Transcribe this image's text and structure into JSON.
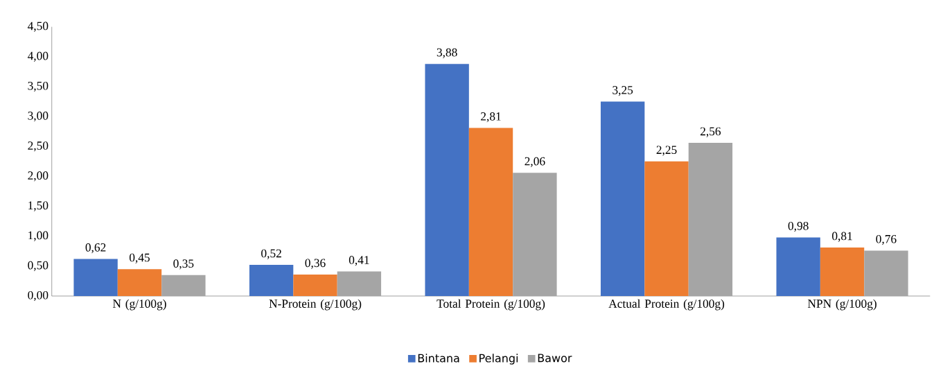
{
  "chart_data": {
    "type": "bar",
    "categories": [
      "N (g/100g)",
      "N-Protein (g/100g)",
      "Total Protein (g/100g)",
      "Actual Protein (g/100g)",
      "NPN (g/100g)"
    ],
    "series": [
      {
        "name": "Bintana",
        "color": "#4472c4",
        "values": [
          0.62,
          0.52,
          3.88,
          3.25,
          0.98
        ],
        "value_labels": [
          "0,62",
          "0,52",
          "3,88",
          "3,25",
          "0,98"
        ]
      },
      {
        "name": "Pelangi",
        "color": "#ed7d31",
        "values": [
          0.45,
          0.36,
          2.81,
          2.25,
          0.81
        ],
        "value_labels": [
          "0,45",
          "0,36",
          "2,81",
          "2,25",
          "0,81"
        ]
      },
      {
        "name": "Bawor",
        "color": "#a5a5a5",
        "values": [
          0.35,
          0.41,
          2.06,
          2.56,
          0.76
        ],
        "value_labels": [
          "0,35",
          "0,41",
          "2,06",
          "2,56",
          "0,76"
        ]
      }
    ],
    "ylim": [
      0,
      4.5
    ],
    "yticks": [
      {
        "value": 0,
        "label": "0,00"
      },
      {
        "value": 0.5,
        "label": "0,50"
      },
      {
        "value": 1,
        "label": "1,00"
      },
      {
        "value": 1.5,
        "label": "1,50"
      },
      {
        "value": 2,
        "label": "2,00"
      },
      {
        "value": 2.5,
        "label": "2,50"
      },
      {
        "value": 3,
        "label": "3,00"
      },
      {
        "value": 3.5,
        "label": "3,50"
      },
      {
        "value": 4,
        "label": "4,00"
      },
      {
        "value": 4.5,
        "label": "4,50"
      }
    ],
    "grid": false,
    "legend": "bottom"
  }
}
